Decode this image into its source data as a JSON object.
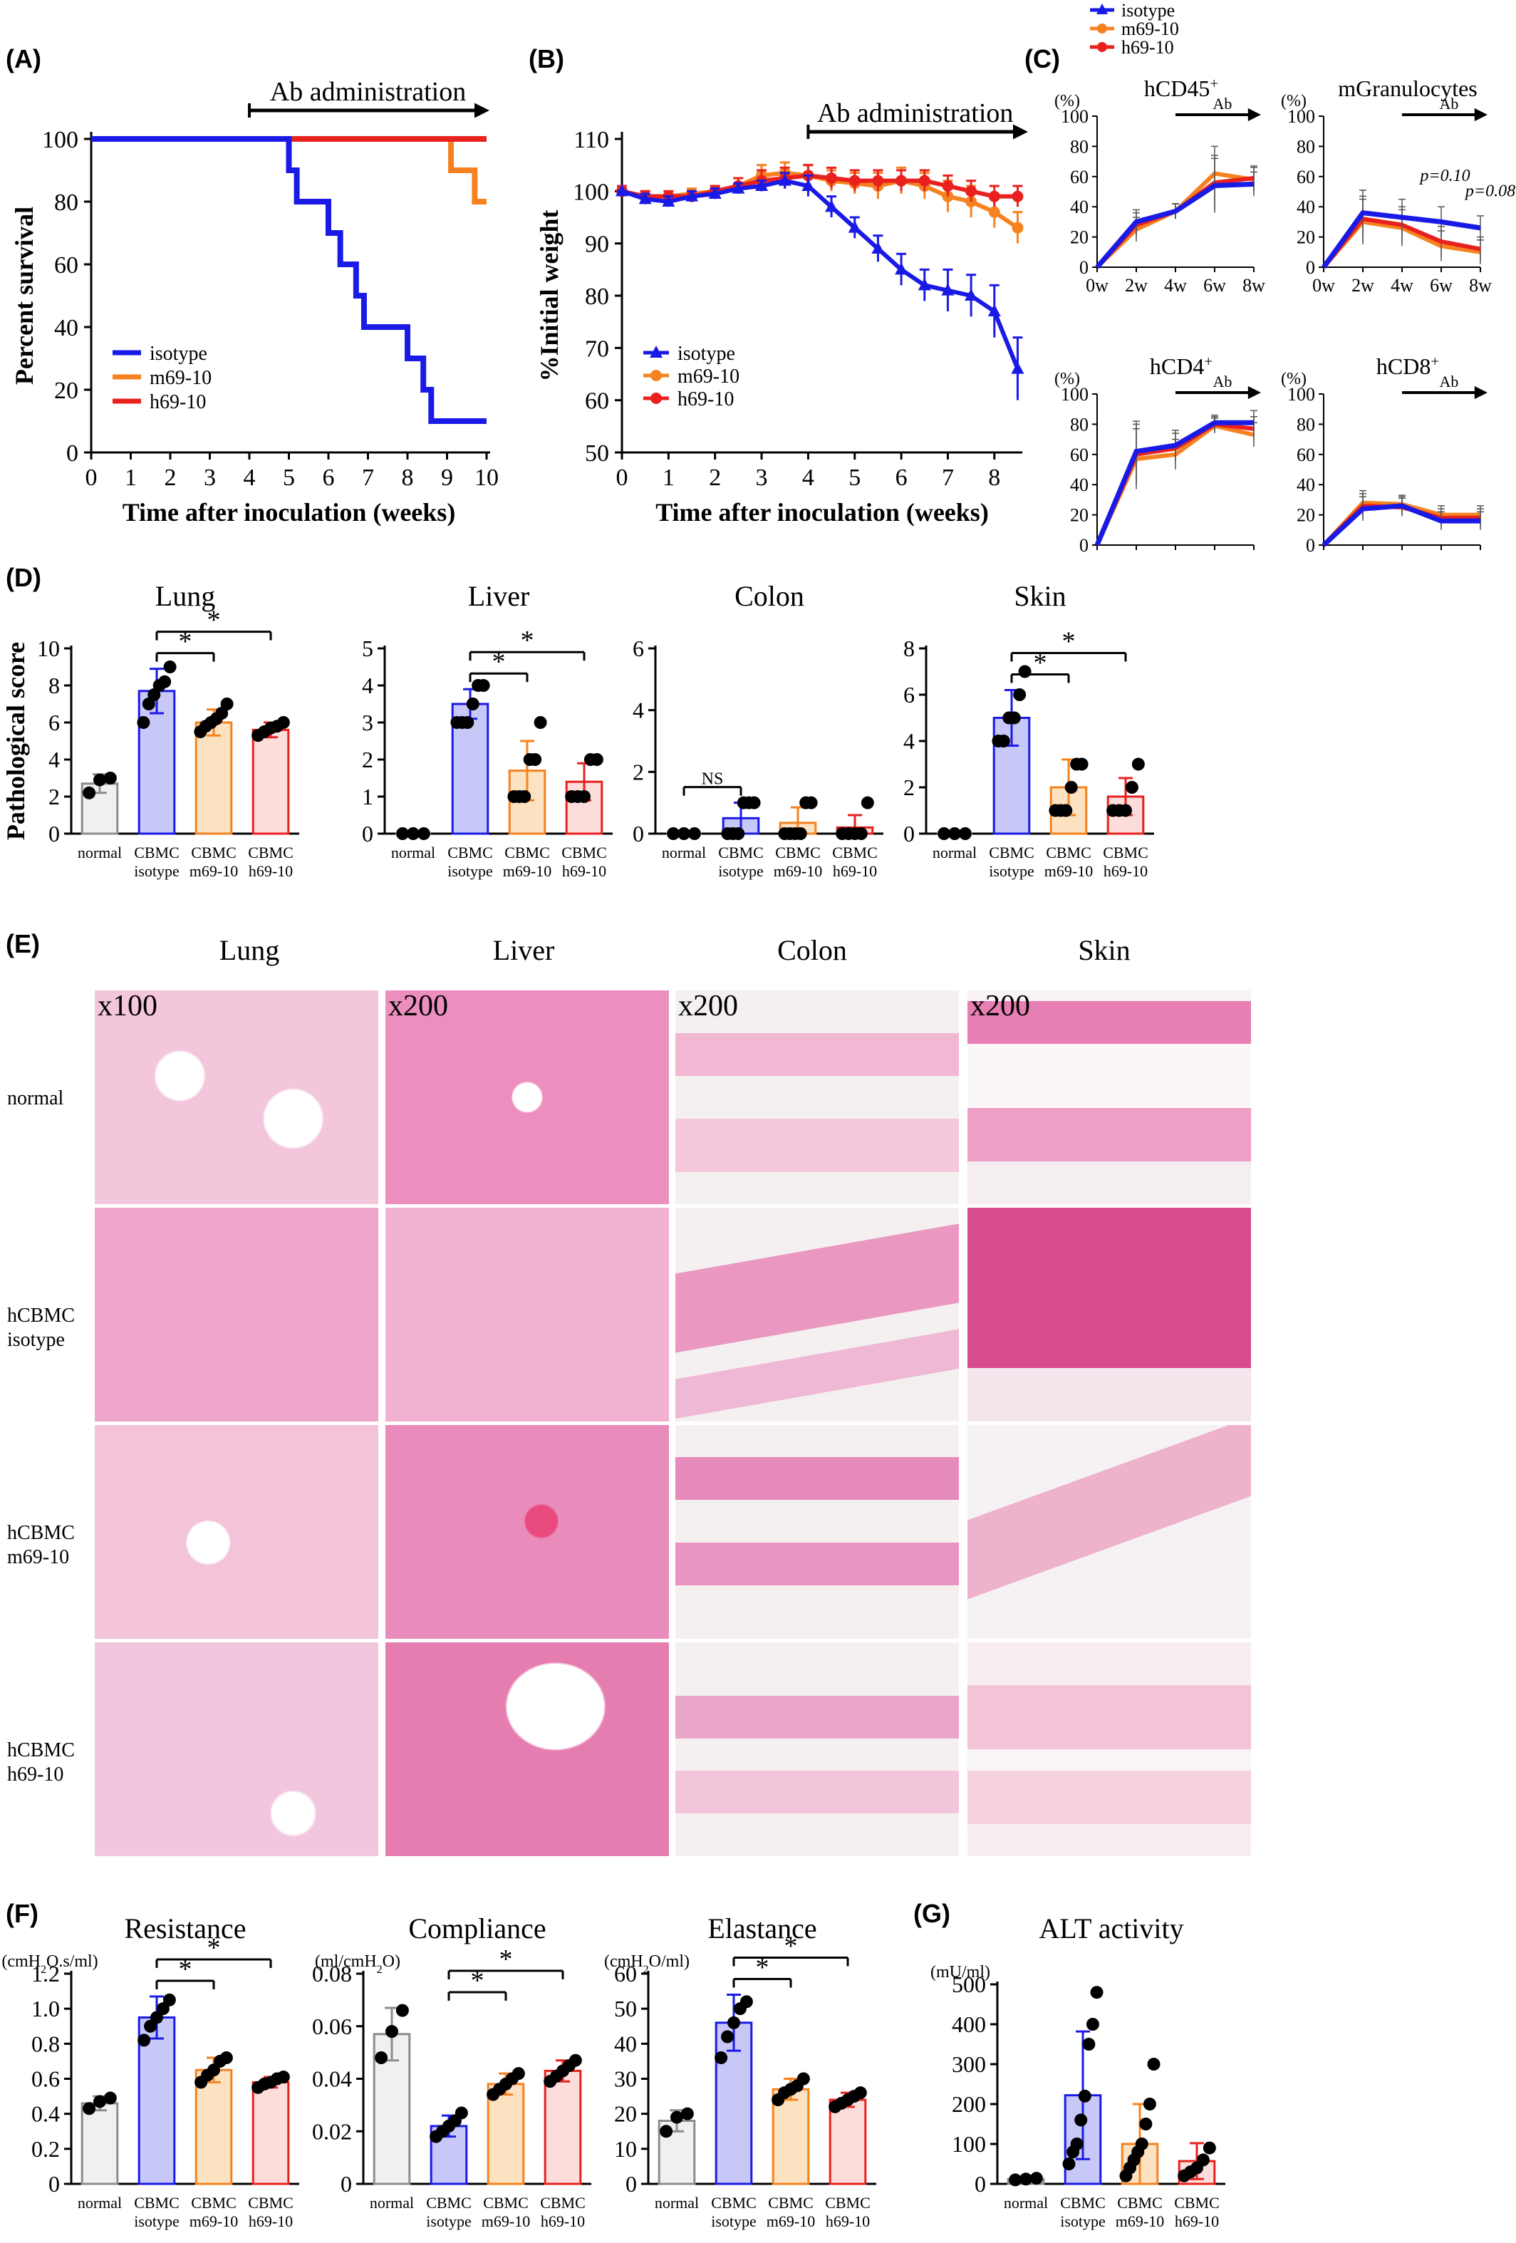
{
  "panels": {
    "A": {
      "label": "(A)"
    },
    "B": {
      "label": "(B)"
    },
    "C": {
      "label": "(C)"
    },
    "D": {
      "label": "(D)"
    },
    "E": {
      "label": "(E)"
    },
    "F": {
      "label": "(F)"
    },
    "G": {
      "label": "(G)"
    }
  },
  "colors": {
    "isotype": "#1a1ae6",
    "m69_10": "#f5821f",
    "h69_10": "#e8211e",
    "normal": "#8c8c8c"
  },
  "chart_data": [
    {
      "id": "A",
      "type": "line",
      "title": "",
      "xlabel": "Time after inoculation (weeks)",
      "ylabel": "Percent survival",
      "xlim": [
        0,
        10
      ],
      "ylim": [
        0,
        100
      ],
      "xticks": [
        "0",
        "1",
        "2",
        "3",
        "4",
        "5",
        "6",
        "7",
        "8",
        "9",
        "10"
      ],
      "yticks": [
        "0",
        "20",
        "40",
        "60",
        "80",
        "100"
      ],
      "annotation": "Ab administration",
      "series": [
        {
          "name": "isotype",
          "color": "#1a1ae6",
          "steps": [
            [
              0,
              100
            ],
            [
              5,
              100
            ],
            [
              5,
              90
            ],
            [
              5.2,
              90
            ],
            [
              5.2,
              80
            ],
            [
              6,
              80
            ],
            [
              6,
              70
            ],
            [
              6.3,
              70
            ],
            [
              6.3,
              60
            ],
            [
              6.7,
              60
            ],
            [
              6.7,
              50
            ],
            [
              6.9,
              50
            ],
            [
              6.9,
              40
            ],
            [
              8,
              40
            ],
            [
              8,
              30
            ],
            [
              8.4,
              30
            ],
            [
              8.4,
              20
            ],
            [
              8.6,
              20
            ],
            [
              8.6,
              10
            ],
            [
              10,
              10
            ]
          ]
        },
        {
          "name": "m69-10",
          "color": "#f5821f",
          "steps": [
            [
              0,
              100
            ],
            [
              9.1,
              100
            ],
            [
              9.1,
              90
            ],
            [
              9.7,
              90
            ],
            [
              9.7,
              80
            ],
            [
              10,
              80
            ]
          ]
        },
        {
          "name": "h69-10",
          "color": "#e8211e",
          "steps": [
            [
              0,
              100
            ],
            [
              10,
              100
            ]
          ]
        }
      ]
    },
    {
      "id": "B",
      "type": "line",
      "title": "",
      "xlabel": "Time after inoculation (weeks)",
      "ylabel": "%Initial weight",
      "xlim": [
        0,
        8.6
      ],
      "ylim": [
        50,
        110
      ],
      "xticks": [
        "0",
        "1",
        "2",
        "3",
        "4",
        "5",
        "6",
        "7",
        "8"
      ],
      "yticks": [
        "50",
        "60",
        "70",
        "80",
        "90",
        "100",
        "110"
      ],
      "annotation": "Ab administration",
      "x": [
        0,
        0.5,
        1,
        1.5,
        2,
        2.5,
        3,
        3.5,
        4,
        4.5,
        5,
        5.5,
        6,
        6.5,
        7,
        7.5,
        8,
        8.5
      ],
      "series": [
        {
          "name": "isotype",
          "color": "#1a1ae6",
          "values": [
            100,
            98.5,
            98,
            99,
            99.5,
            100.5,
            101,
            102,
            101,
            97,
            93,
            89,
            85,
            82,
            81,
            80,
            77,
            66
          ]
        },
        {
          "name": "m69-10",
          "color": "#f5821f",
          "values": [
            100,
            99,
            99,
            99.5,
            100,
            101,
            103,
            103.5,
            103,
            102,
            101.5,
            101,
            102,
            101,
            99,
            98,
            96,
            93
          ]
        },
        {
          "name": "h69-10",
          "color": "#e8211e",
          "values": [
            100,
            99,
            99,
            99,
            100,
            101,
            102,
            102.5,
            103,
            102.5,
            102,
            102,
            102,
            102,
            101,
            100,
            99,
            99
          ]
        }
      ]
    },
    {
      "id": "C-hCD45",
      "type": "line",
      "title": "hCD45+",
      "ylabel": "(%)",
      "categories": [
        "0w",
        "2w",
        "4w",
        "6w",
        "8w"
      ],
      "ylim": [
        0,
        100
      ],
      "yticks": [
        "0",
        "20",
        "40",
        "60",
        "80",
        "100"
      ],
      "annotation": "Ab",
      "series": [
        {
          "name": "m69-10",
          "color": "#f5821f",
          "values": [
            0,
            25,
            37,
            62,
            58
          ]
        },
        {
          "name": "h69-10",
          "color": "#e8211e",
          "values": [
            0,
            28,
            37,
            56,
            59
          ]
        },
        {
          "name": "isotype",
          "color": "#1a1ae6",
          "values": [
            0,
            30,
            37,
            54,
            55
          ]
        }
      ]
    },
    {
      "id": "C-mGranulocytes",
      "type": "line",
      "title": "mGranulocytes",
      "ylabel": "(%)",
      "categories": [
        "0w",
        "2w",
        "4w",
        "6w",
        "8w"
      ],
      "ylim": [
        0,
        100
      ],
      "yticks": [
        "0",
        "20",
        "40",
        "60",
        "80",
        "100"
      ],
      "annotation": "Ab",
      "annotations": [
        "p=0.10",
        "p=0.08"
      ],
      "series": [
        {
          "name": "m69-10",
          "color": "#f5821f",
          "values": [
            0,
            30,
            26,
            14,
            10
          ]
        },
        {
          "name": "h69-10",
          "color": "#e8211e",
          "values": [
            0,
            32,
            28,
            17,
            12
          ]
        },
        {
          "name": "isotype",
          "color": "#1a1ae6",
          "values": [
            0,
            36,
            33,
            30,
            26
          ]
        }
      ]
    },
    {
      "id": "C-hCD4",
      "type": "line",
      "title": "hCD4+",
      "ylabel": "(%)",
      "categories": [
        "0w",
        "2w",
        "4w",
        "6w",
        "8w"
      ],
      "ylim": [
        0,
        100
      ],
      "yticks": [
        "0",
        "20",
        "40",
        "60",
        "80",
        "100"
      ],
      "annotation": "Ab",
      "series": [
        {
          "name": "m69-10",
          "color": "#f5821f",
          "values": [
            0,
            57,
            60,
            79,
            73
          ]
        },
        {
          "name": "h69-10",
          "color": "#e8211e",
          "values": [
            0,
            60,
            64,
            80,
            77
          ]
        },
        {
          "name": "isotype",
          "color": "#1a1ae6",
          "values": [
            0,
            62,
            66,
            81,
            81
          ]
        }
      ]
    },
    {
      "id": "C-hCD8",
      "type": "line",
      "title": "hCD8+",
      "ylabel": "(%)",
      "categories": [
        "0w",
        "2w",
        "4w",
        "6w",
        "8w"
      ],
      "ylim": [
        0,
        100
      ],
      "yticks": [
        "0",
        "20",
        "40",
        "60",
        "80",
        "100"
      ],
      "annotation": "Ab",
      "series": [
        {
          "name": "m69-10",
          "color": "#f5821f",
          "values": [
            0,
            28,
            27,
            20,
            20
          ]
        },
        {
          "name": "h69-10",
          "color": "#e8211e",
          "values": [
            0,
            26,
            25,
            18,
            18
          ]
        },
        {
          "name": "isotype",
          "color": "#1a1ae6",
          "values": [
            0,
            24,
            26,
            16,
            16
          ]
        }
      ]
    },
    {
      "id": "D-Lung",
      "type": "bar",
      "title": "Lung",
      "ylabel": "Pathological score",
      "ylim": [
        0,
        10
      ],
      "yticks": [
        "0",
        "2",
        "4",
        "6",
        "8",
        "10"
      ],
      "categories": [
        [
          "normal",
          ""
        ],
        [
          "CBMC",
          "isotype"
        ],
        [
          "CBMC",
          "m69-10"
        ],
        [
          "CBMC",
          "h69-10"
        ]
      ],
      "values": [
        2.7,
        7.7,
        6.0,
        5.6
      ],
      "errors": [
        0.5,
        1.2,
        0.7,
        0.4
      ],
      "points": [
        [
          2.2,
          2.9,
          3.0
        ],
        [
          6.0,
          7.0,
          7.5,
          8.0,
          8.2,
          9.0
        ],
        [
          5.5,
          5.8,
          6.0,
          6.2,
          6.5,
          7.0
        ],
        [
          5.3,
          5.5,
          5.7,
          5.8,
          6.0
        ]
      ],
      "significance": [
        {
          "pair": [
            1,
            2
          ],
          "label": "*"
        },
        {
          "pair": [
            1,
            3
          ],
          "label": "*"
        }
      ]
    },
    {
      "id": "D-Liver",
      "type": "bar",
      "title": "Liver",
      "ylim": [
        0,
        5
      ],
      "yticks": [
        "0",
        "1",
        "2",
        "3",
        "4",
        "5"
      ],
      "categories": [
        [
          "normal",
          ""
        ],
        [
          "CBMC",
          "isotype"
        ],
        [
          "CBMC",
          "m69-10"
        ],
        [
          "CBMC",
          "h69-10"
        ]
      ],
      "values": [
        0.0,
        3.5,
        1.7,
        1.4
      ],
      "errors": [
        0,
        0.4,
        0.8,
        0.5
      ],
      "points": [
        [
          0,
          0,
          0
        ],
        [
          3.0,
          3.0,
          3.0,
          3.5,
          4.0,
          4.0
        ],
        [
          1.0,
          1.0,
          1.0,
          2.0,
          2.0,
          3.0
        ],
        [
          1.0,
          1.0,
          1.0,
          2.0,
          2.0
        ]
      ],
      "significance": [
        {
          "pair": [
            1,
            2
          ],
          "label": "*"
        },
        {
          "pair": [
            1,
            3
          ],
          "label": "*"
        }
      ]
    },
    {
      "id": "D-Colon",
      "type": "bar",
      "title": "Colon",
      "ylim": [
        0,
        6
      ],
      "yticks": [
        "0",
        "2",
        "4",
        "6"
      ],
      "categories": [
        [
          "normal",
          ""
        ],
        [
          "CBMC",
          "isotype"
        ],
        [
          "CBMC",
          "m69-10"
        ],
        [
          "CBMC",
          "h69-10"
        ]
      ],
      "values": [
        0.0,
        0.5,
        0.35,
        0.2
      ],
      "errors": [
        0,
        0.5,
        0.5,
        0.4
      ],
      "points": [
        [
          0,
          0,
          0
        ],
        [
          0,
          0,
          0,
          1,
          1,
          1
        ],
        [
          0,
          0,
          0,
          0,
          1,
          1
        ],
        [
          0,
          0,
          0,
          0,
          1
        ]
      ],
      "significance": [
        {
          "pair": [
            0,
            1
          ],
          "label": "NS"
        }
      ]
    },
    {
      "id": "D-Skin",
      "type": "bar",
      "title": "Skin",
      "ylim": [
        0,
        8
      ],
      "yticks": [
        "0",
        "2",
        "4",
        "6",
        "8"
      ],
      "categories": [
        [
          "normal",
          ""
        ],
        [
          "CBMC",
          "isotype"
        ],
        [
          "CBMC",
          "m69-10"
        ],
        [
          "CBMC",
          "h69-10"
        ]
      ],
      "values": [
        0.0,
        5.0,
        2.0,
        1.6
      ],
      "errors": [
        0,
        1.2,
        1.2,
        0.8
      ],
      "points": [
        [
          0,
          0,
          0
        ],
        [
          4,
          4,
          5,
          5,
          6,
          7
        ],
        [
          1,
          1,
          1,
          2,
          3,
          3
        ],
        [
          1,
          1,
          1,
          2,
          3
        ]
      ],
      "significance": [
        {
          "pair": [
            1,
            2
          ],
          "label": "*"
        },
        {
          "pair": [
            1,
            3
          ],
          "label": "*"
        }
      ]
    },
    {
      "id": "F-Resistance",
      "type": "bar",
      "title": "Resistance",
      "ylabel": "(cmH2O.s/ml)",
      "ylim": [
        0,
        1.2
      ],
      "yticks": [
        "0",
        "0.2",
        "0.4",
        "0.6",
        "0.8",
        "1.0",
        "1.2"
      ],
      "categories": [
        [
          "normal",
          ""
        ],
        [
          "CBMC",
          "isotype"
        ],
        [
          "CBMC",
          "m69-10"
        ],
        [
          "CBMC",
          "h69-10"
        ]
      ],
      "values": [
        0.46,
        0.95,
        0.65,
        0.58
      ],
      "errors": [
        0.04,
        0.12,
        0.07,
        0.03
      ],
      "points": [
        [
          0.43,
          0.47,
          0.49
        ],
        [
          0.82,
          0.9,
          0.95,
          1.0,
          1.05
        ],
        [
          0.58,
          0.62,
          0.65,
          0.7,
          0.72
        ],
        [
          0.55,
          0.57,
          0.58,
          0.6,
          0.61
        ]
      ],
      "significance": [
        {
          "pair": [
            1,
            2
          ],
          "label": "*"
        },
        {
          "pair": [
            1,
            3
          ],
          "label": "*"
        }
      ]
    },
    {
      "id": "F-Compliance",
      "type": "bar",
      "title": "Compliance",
      "ylabel": "(ml/cmH2O)",
      "ylim": [
        0,
        0.08
      ],
      "yticks": [
        "0",
        "0.02",
        "0.04",
        "0.06",
        "0.08"
      ],
      "categories": [
        [
          "normal",
          ""
        ],
        [
          "CBMC",
          "isotype"
        ],
        [
          "CBMC",
          "m69-10"
        ],
        [
          "CBMC",
          "h69-10"
        ]
      ],
      "values": [
        0.057,
        0.022,
        0.038,
        0.043
      ],
      "errors": [
        0.01,
        0.004,
        0.004,
        0.004
      ],
      "points": [
        [
          0.048,
          0.058,
          0.066
        ],
        [
          0.018,
          0.02,
          0.022,
          0.024,
          0.027
        ],
        [
          0.034,
          0.036,
          0.038,
          0.04,
          0.042
        ],
        [
          0.039,
          0.041,
          0.043,
          0.045,
          0.047
        ]
      ],
      "significance": [
        {
          "pair": [
            1,
            2
          ],
          "label": "*"
        },
        {
          "pair": [
            1,
            3
          ],
          "label": "*"
        }
      ]
    },
    {
      "id": "F-Elastance",
      "type": "bar",
      "title": "Elastance",
      "ylabel": "(cmH2O/ml)",
      "ylim": [
        0,
        60
      ],
      "yticks": [
        "0",
        "10",
        "20",
        "30",
        "40",
        "50",
        "60"
      ],
      "categories": [
        [
          "normal",
          ""
        ],
        [
          "CBMC",
          "isotype"
        ],
        [
          "CBMC",
          "m69-10"
        ],
        [
          "CBMC",
          "h69-10"
        ]
      ],
      "values": [
        18,
        46,
        27,
        24
      ],
      "errors": [
        3,
        8,
        3,
        2
      ],
      "points": [
        [
          15,
          19,
          20
        ],
        [
          36,
          42,
          46,
          50,
          52
        ],
        [
          24,
          26,
          27,
          28,
          30
        ],
        [
          22,
          23,
          24,
          25,
          26
        ]
      ],
      "significance": [
        {
          "pair": [
            1,
            2
          ],
          "label": "*"
        },
        {
          "pair": [
            1,
            3
          ],
          "label": "*"
        }
      ]
    },
    {
      "id": "G-ALT",
      "type": "bar",
      "title": "ALT activity",
      "ylabel": "(mU/ml)",
      "ylim": [
        0,
        500
      ],
      "yticks": [
        "0",
        "100",
        "200",
        "300",
        "400",
        "500"
      ],
      "categories": [
        [
          "normal",
          ""
        ],
        [
          "CBMC",
          "isotype"
        ],
        [
          "CBMC",
          "m69-10"
        ],
        [
          "CBMC",
          "h69-10"
        ]
      ],
      "values": [
        12,
        222,
        100,
        57
      ],
      "errors": [
        0,
        160,
        100,
        45
      ],
      "points": [
        [
          10,
          12,
          14
        ],
        [
          50,
          80,
          100,
          160,
          220,
          350,
          400,
          480
        ],
        [
          20,
          40,
          60,
          80,
          100,
          150,
          200,
          300
        ],
        [
          20,
          30,
          40,
          60,
          90
        ]
      ]
    }
  ],
  "histology": {
    "columns": [
      "Lung",
      "Liver",
      "Colon",
      "Skin"
    ],
    "magnifications": [
      "x100",
      "x200",
      "x200",
      "x200"
    ],
    "rows": [
      [
        "normal",
        ""
      ],
      [
        "hCBMC",
        "isotype"
      ],
      [
        "hCBMC",
        "m69-10"
      ],
      [
        "hCBMC",
        "h69-10"
      ]
    ]
  }
}
